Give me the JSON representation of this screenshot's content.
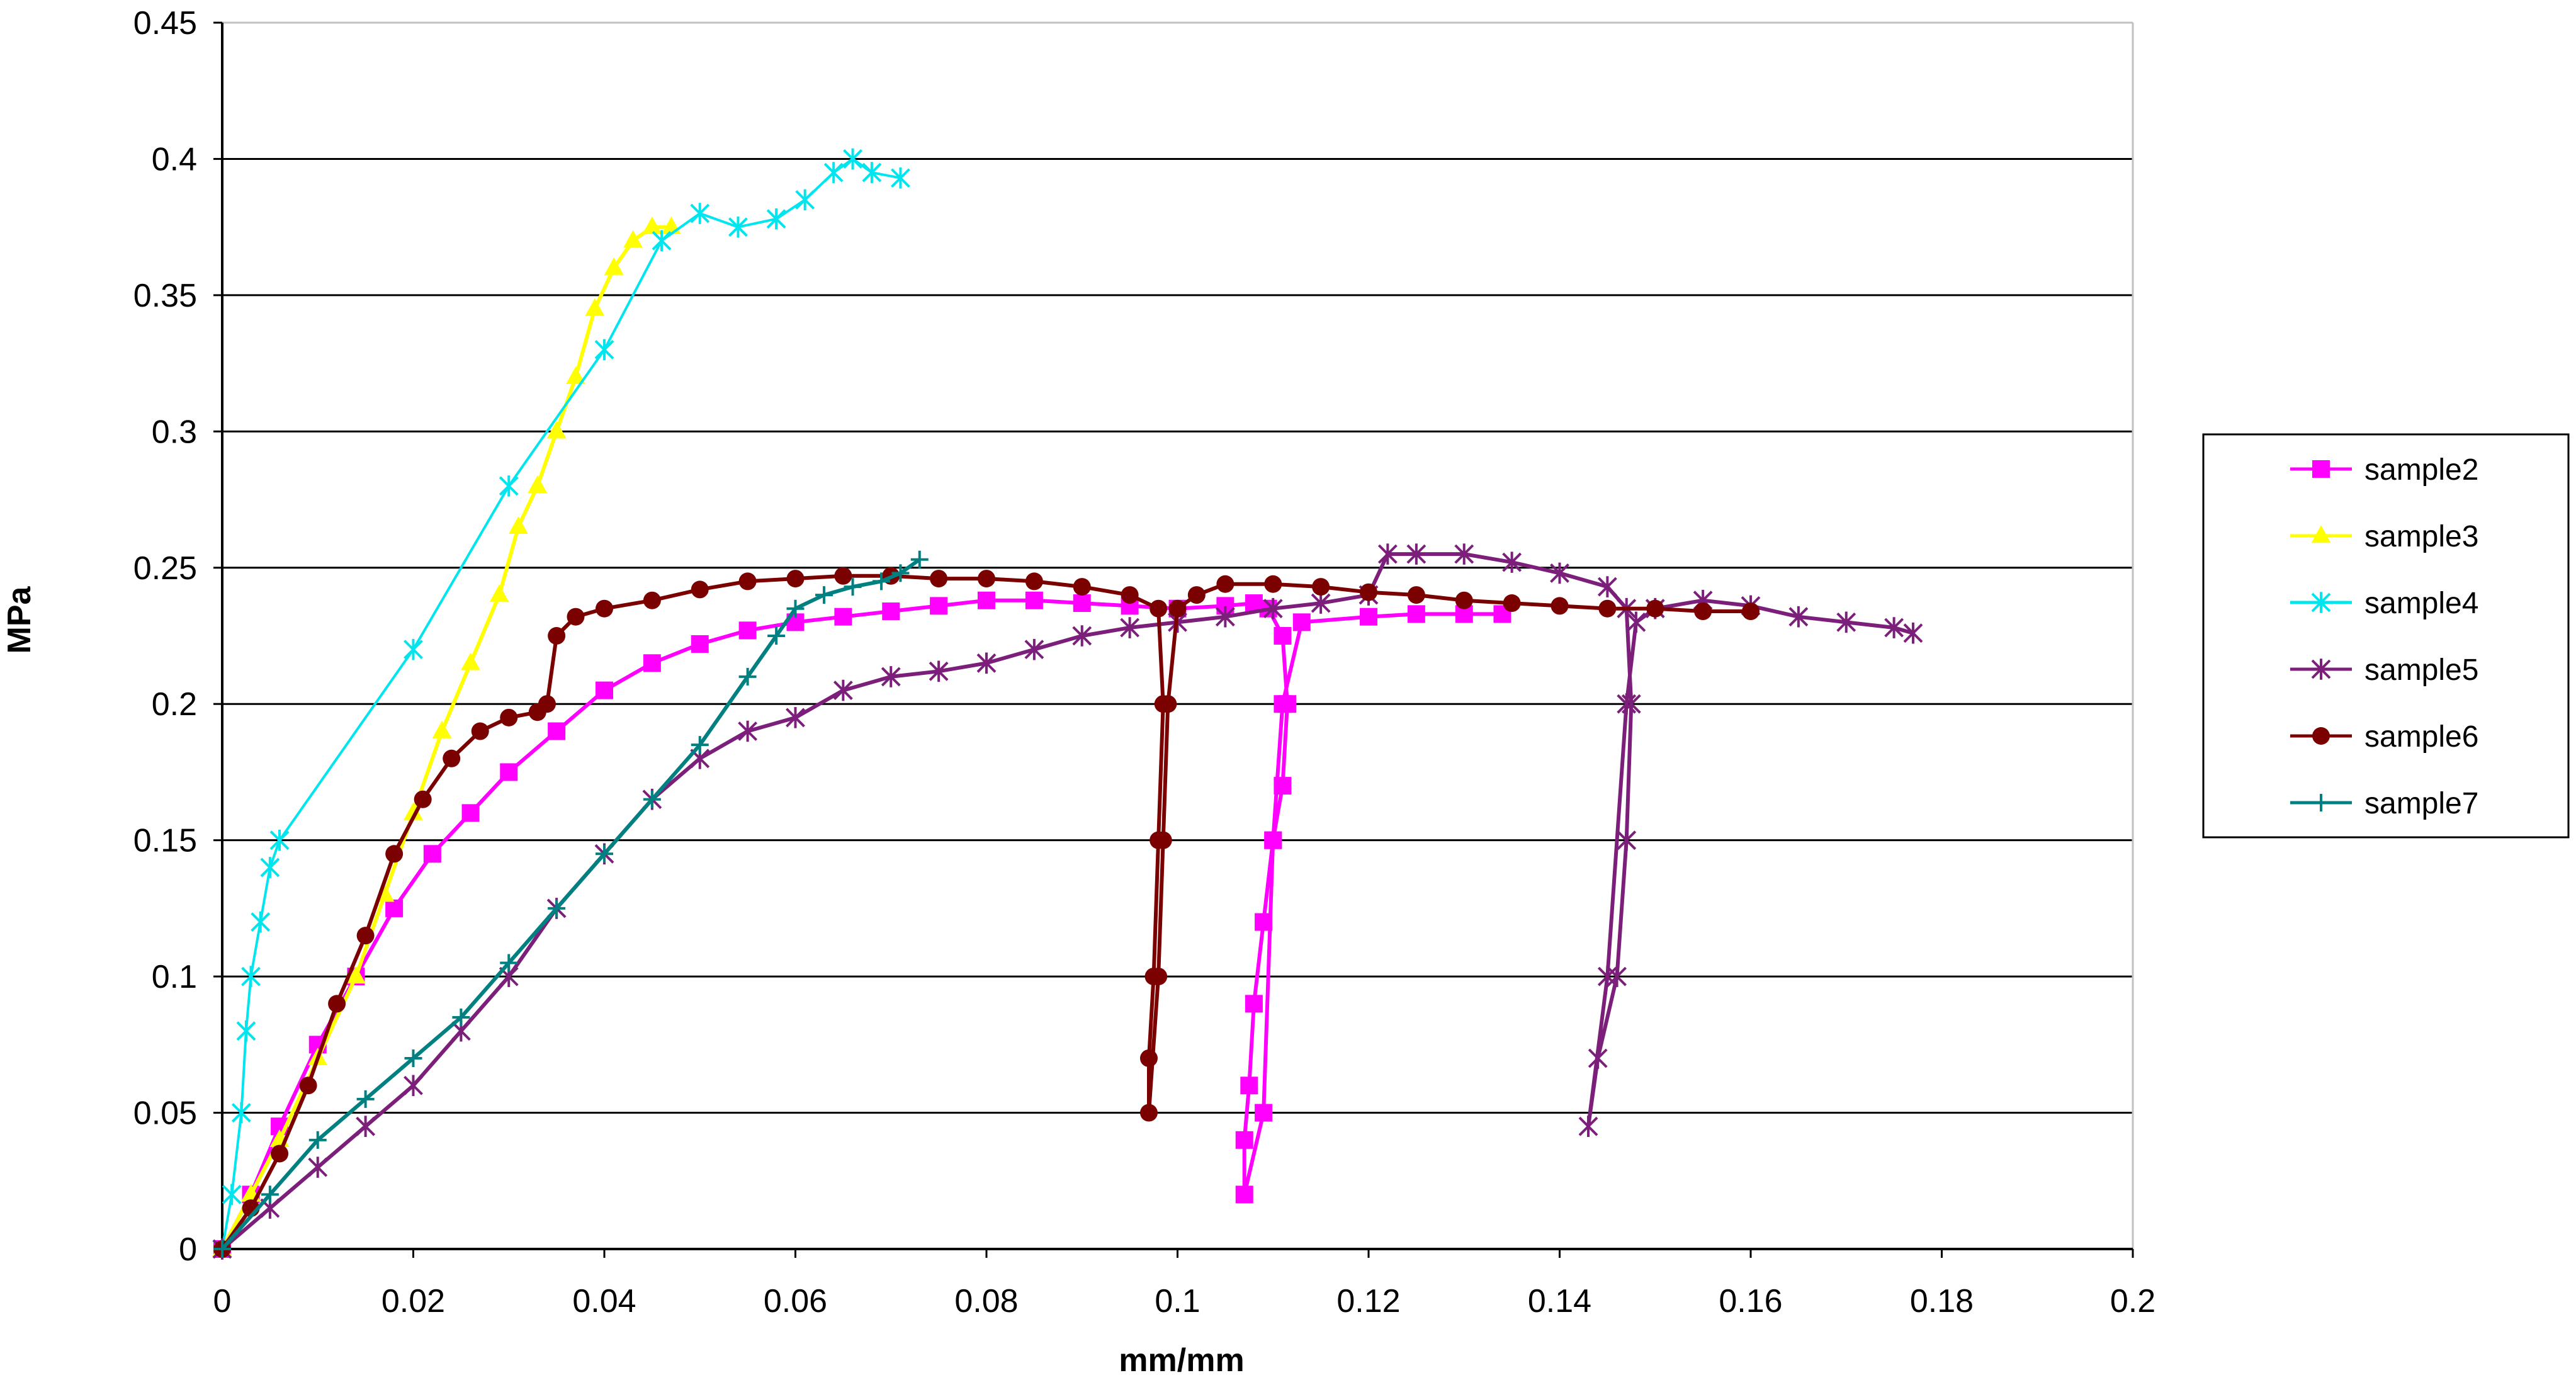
{
  "chart_data": {
    "type": "scatter",
    "xlabel": "mm/mm",
    "ylabel": "MPa",
    "xlim": [
      0,
      0.2
    ],
    "ylim": [
      0,
      0.45
    ],
    "xticks": [
      "0",
      "0.02",
      "0.04",
      "0.06",
      "0.08",
      "0.1",
      "0.12",
      "0.14",
      "0.16",
      "0.18",
      "0.2"
    ],
    "yticks": [
      "0",
      "0.05",
      "0.1",
      "0.15",
      "0.2",
      "0.25",
      "0.3",
      "0.35",
      "0.4",
      "0.45"
    ],
    "grid": "horizontal",
    "legend_position": "right",
    "series": [
      {
        "name": "sample2",
        "color": "#ff00ff",
        "marker": "square",
        "points": [
          [
            0,
            0
          ],
          [
            0.003,
            0.02
          ],
          [
            0.006,
            0.045
          ],
          [
            0.01,
            0.075
          ],
          [
            0.014,
            0.1
          ],
          [
            0.018,
            0.125
          ],
          [
            0.022,
            0.145
          ],
          [
            0.026,
            0.16
          ],
          [
            0.03,
            0.175
          ],
          [
            0.035,
            0.19
          ],
          [
            0.04,
            0.205
          ],
          [
            0.045,
            0.215
          ],
          [
            0.05,
            0.222
          ],
          [
            0.055,
            0.227
          ],
          [
            0.06,
            0.23
          ],
          [
            0.065,
            0.232
          ],
          [
            0.07,
            0.234
          ],
          [
            0.075,
            0.236
          ],
          [
            0.08,
            0.238
          ],
          [
            0.085,
            0.238
          ],
          [
            0.09,
            0.237
          ],
          [
            0.095,
            0.236
          ],
          [
            0.1,
            0.235
          ],
          [
            0.105,
            0.236
          ],
          [
            0.108,
            0.237
          ],
          [
            0.1095,
            0.235
          ],
          [
            0.111,
            0.225
          ],
          [
            0.1115,
            0.2
          ],
          [
            0.111,
            0.17
          ],
          [
            0.11,
            0.15
          ],
          [
            0.109,
            0.12
          ],
          [
            0.108,
            0.09
          ],
          [
            0.1075,
            0.06
          ],
          [
            0.107,
            0.04
          ],
          [
            0.107,
            0.02
          ],
          [
            0.109,
            0.05
          ],
          [
            0.11,
            0.15
          ],
          [
            0.111,
            0.2
          ],
          [
            0.113,
            0.23
          ],
          [
            0.12,
            0.232
          ],
          [
            0.125,
            0.233
          ],
          [
            0.13,
            0.233
          ],
          [
            0.134,
            0.233
          ]
        ]
      },
      {
        "name": "sample3",
        "color": "#ffff00",
        "marker": "triangle",
        "points": [
          [
            0,
            0
          ],
          [
            0.003,
            0.02
          ],
          [
            0.006,
            0.04
          ],
          [
            0.01,
            0.07
          ],
          [
            0.014,
            0.1
          ],
          [
            0.017,
            0.13
          ],
          [
            0.02,
            0.16
          ],
          [
            0.023,
            0.19
          ],
          [
            0.026,
            0.215
          ],
          [
            0.029,
            0.24
          ],
          [
            0.031,
            0.265
          ],
          [
            0.033,
            0.28
          ],
          [
            0.035,
            0.3
          ],
          [
            0.037,
            0.32
          ],
          [
            0.039,
            0.345
          ],
          [
            0.041,
            0.36
          ],
          [
            0.043,
            0.37
          ],
          [
            0.045,
            0.375
          ],
          [
            0.047,
            0.375
          ]
        ]
      },
      {
        "name": "sample4",
        "color": "#00e5ee",
        "marker": "star",
        "points": [
          [
            0,
            0
          ],
          [
            0.001,
            0.02
          ],
          [
            0.002,
            0.05
          ],
          [
            0.0025,
            0.08
          ],
          [
            0.003,
            0.1
          ],
          [
            0.004,
            0.12
          ],
          [
            0.005,
            0.14
          ],
          [
            0.006,
            0.15
          ],
          [
            0.02,
            0.22
          ],
          [
            0.03,
            0.28
          ],
          [
            0.04,
            0.33
          ],
          [
            0.046,
            0.37
          ],
          [
            0.05,
            0.38
          ],
          [
            0.054,
            0.375
          ],
          [
            0.058,
            0.378
          ],
          [
            0.061,
            0.385
          ],
          [
            0.064,
            0.395
          ],
          [
            0.066,
            0.4
          ],
          [
            0.068,
            0.395
          ],
          [
            0.071,
            0.393
          ]
        ]
      },
      {
        "name": "sample5",
        "color": "#7b1f7a",
        "marker": "asterisk",
        "points": [
          [
            0,
            0
          ],
          [
            0.005,
            0.015
          ],
          [
            0.01,
            0.03
          ],
          [
            0.015,
            0.045
          ],
          [
            0.02,
            0.06
          ],
          [
            0.025,
            0.08
          ],
          [
            0.03,
            0.1
          ],
          [
            0.035,
            0.125
          ],
          [
            0.04,
            0.145
          ],
          [
            0.045,
            0.165
          ],
          [
            0.05,
            0.18
          ],
          [
            0.055,
            0.19
          ],
          [
            0.06,
            0.195
          ],
          [
            0.065,
            0.205
          ],
          [
            0.07,
            0.21
          ],
          [
            0.075,
            0.212
          ],
          [
            0.08,
            0.215
          ],
          [
            0.085,
            0.22
          ],
          [
            0.09,
            0.225
          ],
          [
            0.095,
            0.228
          ],
          [
            0.1,
            0.23
          ],
          [
            0.105,
            0.232
          ],
          [
            0.11,
            0.235
          ],
          [
            0.115,
            0.237
          ],
          [
            0.12,
            0.24
          ],
          [
            0.122,
            0.255
          ],
          [
            0.125,
            0.255
          ],
          [
            0.13,
            0.255
          ],
          [
            0.135,
            0.252
          ],
          [
            0.14,
            0.248
          ],
          [
            0.145,
            0.243
          ],
          [
            0.147,
            0.235
          ],
          [
            0.1475,
            0.2
          ],
          [
            0.147,
            0.15
          ],
          [
            0.146,
            0.1
          ],
          [
            0.144,
            0.07
          ],
          [
            0.143,
            0.045
          ],
          [
            0.145,
            0.1
          ],
          [
            0.147,
            0.2
          ],
          [
            0.148,
            0.23
          ],
          [
            0.15,
            0.235
          ],
          [
            0.155,
            0.238
          ],
          [
            0.16,
            0.236
          ],
          [
            0.165,
            0.232
          ],
          [
            0.17,
            0.23
          ],
          [
            0.175,
            0.228
          ],
          [
            0.177,
            0.226
          ]
        ]
      },
      {
        "name": "sample6",
        "color": "#7b0000",
        "marker": "circle",
        "points": [
          [
            0,
            0
          ],
          [
            0.003,
            0.015
          ],
          [
            0.006,
            0.035
          ],
          [
            0.009,
            0.06
          ],
          [
            0.012,
            0.09
          ],
          [
            0.015,
            0.115
          ],
          [
            0.018,
            0.145
          ],
          [
            0.021,
            0.165
          ],
          [
            0.024,
            0.18
          ],
          [
            0.027,
            0.19
          ],
          [
            0.03,
            0.195
          ],
          [
            0.033,
            0.197
          ],
          [
            0.034,
            0.2
          ],
          [
            0.035,
            0.225
          ],
          [
            0.037,
            0.232
          ],
          [
            0.04,
            0.235
          ],
          [
            0.045,
            0.238
          ],
          [
            0.05,
            0.242
          ],
          [
            0.055,
            0.245
          ],
          [
            0.06,
            0.246
          ],
          [
            0.065,
            0.247
          ],
          [
            0.07,
            0.247
          ],
          [
            0.075,
            0.246
          ],
          [
            0.08,
            0.246
          ],
          [
            0.085,
            0.245
          ],
          [
            0.09,
            0.243
          ],
          [
            0.095,
            0.24
          ],
          [
            0.098,
            0.235
          ],
          [
            0.0985,
            0.2
          ],
          [
            0.098,
            0.15
          ],
          [
            0.0975,
            0.1
          ],
          [
            0.097,
            0.07
          ],
          [
            0.097,
            0.05
          ],
          [
            0.098,
            0.1
          ],
          [
            0.0985,
            0.15
          ],
          [
            0.099,
            0.2
          ],
          [
            0.1,
            0.235
          ],
          [
            0.102,
            0.24
          ],
          [
            0.105,
            0.244
          ],
          [
            0.11,
            0.244
          ],
          [
            0.115,
            0.243
          ],
          [
            0.12,
            0.241
          ],
          [
            0.125,
            0.24
          ],
          [
            0.13,
            0.238
          ],
          [
            0.135,
            0.237
          ],
          [
            0.14,
            0.236
          ],
          [
            0.145,
            0.235
          ],
          [
            0.15,
            0.235
          ],
          [
            0.155,
            0.234
          ],
          [
            0.16,
            0.234
          ]
        ]
      },
      {
        "name": "sample7",
        "color": "#008080",
        "marker": "plus",
        "points": [
          [
            0,
            0
          ],
          [
            0.005,
            0.02
          ],
          [
            0.01,
            0.04
          ],
          [
            0.015,
            0.055
          ],
          [
            0.02,
            0.07
          ],
          [
            0.025,
            0.085
          ],
          [
            0.03,
            0.105
          ],
          [
            0.035,
            0.125
          ],
          [
            0.04,
            0.145
          ],
          [
            0.045,
            0.165
          ],
          [
            0.05,
            0.185
          ],
          [
            0.055,
            0.21
          ],
          [
            0.058,
            0.225
          ],
          [
            0.06,
            0.235
          ],
          [
            0.063,
            0.24
          ],
          [
            0.066,
            0.243
          ],
          [
            0.069,
            0.245
          ],
          [
            0.071,
            0.248
          ],
          [
            0.073,
            0.253
          ]
        ]
      }
    ]
  }
}
